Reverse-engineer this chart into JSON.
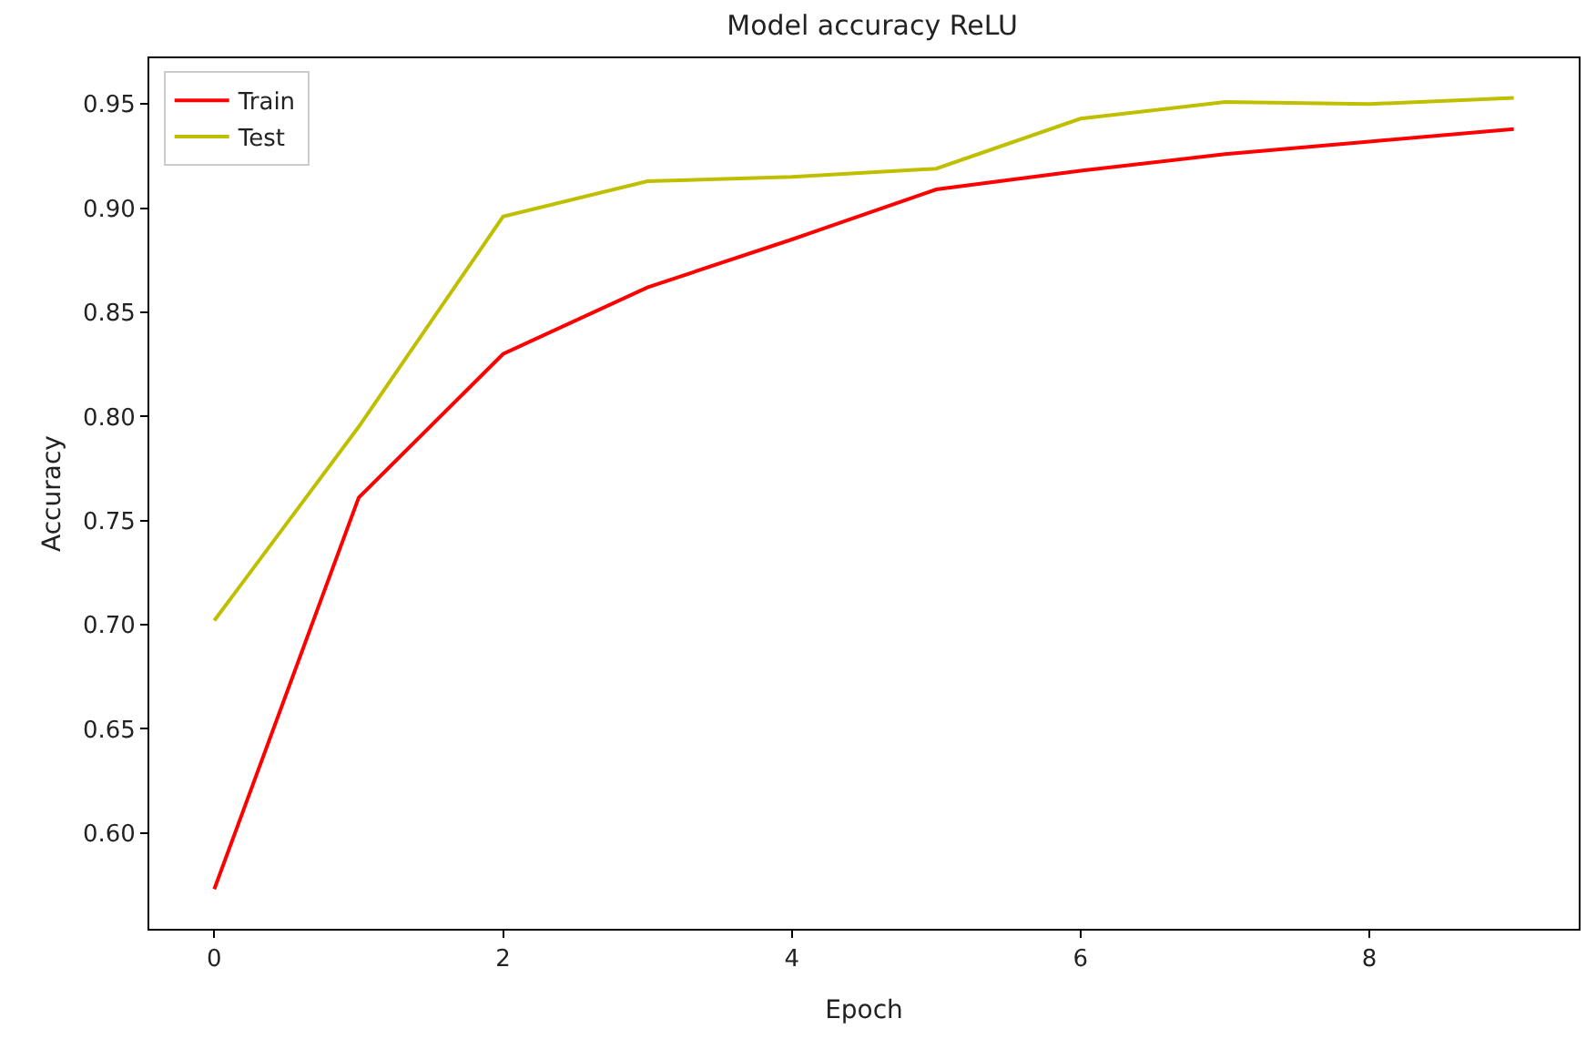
{
  "chart_data": {
    "type": "line",
    "title": "Model accuracy ReLU",
    "xlabel": "Epoch",
    "ylabel": "Accuracy",
    "x": [
      0,
      1,
      2,
      3,
      4,
      5,
      6,
      7,
      8,
      9
    ],
    "series": [
      {
        "name": "Train",
        "color": "#ff0000",
        "values": [
          0.573,
          0.761,
          0.83,
          0.862,
          0.885,
          0.909,
          0.918,
          0.926,
          0.932,
          0.938
        ]
      },
      {
        "name": "Test",
        "color": "#bfbf00",
        "values": [
          0.702,
          0.795,
          0.896,
          0.913,
          0.915,
          0.919,
          0.943,
          0.951,
          0.95,
          0.953
        ]
      }
    ],
    "xlim": [
      -0.45,
      9.45
    ],
    "xticks": [
      0,
      2,
      4,
      6,
      8
    ],
    "ylim": [
      0.554,
      0.972
    ],
    "yticks": [
      {
        "value": 0.6,
        "label": "0.60"
      },
      {
        "value": 0.65,
        "label": "0.65"
      },
      {
        "value": 0.7,
        "label": "0.70"
      },
      {
        "value": 0.75,
        "label": "0.75"
      },
      {
        "value": 0.8,
        "label": "0.80"
      },
      {
        "value": 0.85,
        "label": "0.85"
      },
      {
        "value": 0.9,
        "label": "0.90"
      },
      {
        "value": 0.95,
        "label": "0.95"
      }
    ],
    "legend": "top left",
    "marker": "none",
    "line_style": "solid"
  }
}
